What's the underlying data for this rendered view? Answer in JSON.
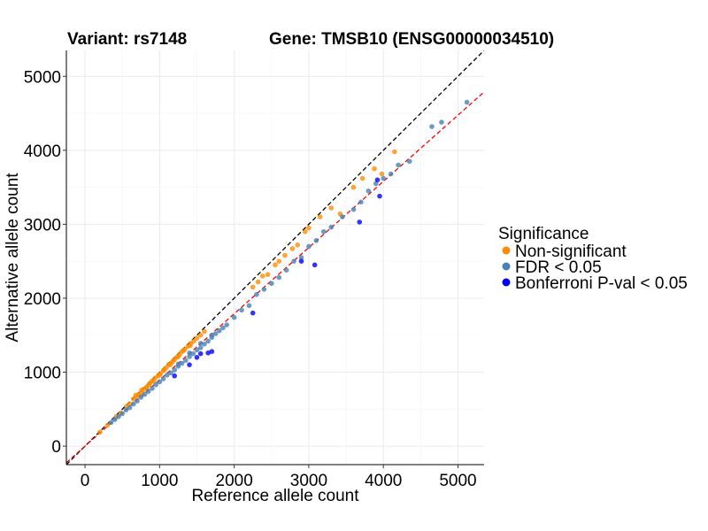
{
  "chart_data": {
    "type": "scatter",
    "title_left": "Variant: rs7148",
    "title_right": "Gene: TMSB10 (ENSG00000034510)",
    "xlabel": "Reference allele count",
    "ylabel": "Alternative allele count",
    "xlim": [
      -250,
      5350
    ],
    "ylim": [
      -250,
      5350
    ],
    "xticks": [
      0,
      1000,
      2000,
      3000,
      4000,
      5000
    ],
    "yticks": [
      0,
      1000,
      2000,
      3000,
      4000,
      5000
    ],
    "xtick_labels": [
      "0",
      "1000",
      "2000",
      "3000",
      "4000",
      "5000"
    ],
    "ytick_labels": [
      "0",
      "1000",
      "2000",
      "3000",
      "4000",
      "5000"
    ],
    "grid": true,
    "reference_lines": [
      {
        "name": "identity",
        "slope": 1.0,
        "intercept": 0,
        "color": "#000000",
        "dash": "dashed"
      },
      {
        "name": "fit",
        "slope": 0.895,
        "intercept": 0,
        "color": "#ff0000",
        "dash": "dashed"
      }
    ],
    "legend": {
      "title": "Significance",
      "placement": "right",
      "entries": [
        {
          "label": "Non-significant",
          "color": "#ff8c00"
        },
        {
          "label": "FDR < 0.05",
          "color": "#4682b4"
        },
        {
          "label": "Bonferroni P-val < 0.05",
          "color": "#0000ff"
        }
      ]
    },
    "series": [
      {
        "name": "Non-significant",
        "color": "#ff8c00",
        "points": [
          [
            200,
            190
          ],
          [
            300,
            280
          ],
          [
            420,
            400
          ],
          [
            480,
            450
          ],
          [
            560,
            540
          ],
          [
            600,
            570
          ],
          [
            650,
            640
          ],
          [
            680,
            660
          ],
          [
            720,
            690
          ],
          [
            760,
            730
          ],
          [
            790,
            770
          ],
          [
            830,
            800
          ],
          [
            870,
            850
          ],
          [
            900,
            880
          ],
          [
            940,
            920
          ],
          [
            980,
            950
          ],
          [
            1010,
            980
          ],
          [
            1050,
            1020
          ],
          [
            1090,
            1060
          ],
          [
            1120,
            1100
          ],
          [
            1160,
            1130
          ],
          [
            1200,
            1170
          ],
          [
            1230,
            1200
          ],
          [
            1270,
            1240
          ],
          [
            1300,
            1280
          ],
          [
            1340,
            1310
          ],
          [
            1380,
            1350
          ],
          [
            1420,
            1390
          ],
          [
            1460,
            1420
          ],
          [
            1500,
            1460
          ],
          [
            1550,
            1500
          ],
          [
            1600,
            1550
          ],
          [
            680,
            690
          ],
          [
            720,
            700
          ],
          [
            760,
            760
          ],
          [
            820,
            790
          ],
          [
            860,
            830
          ],
          [
            920,
            880
          ],
          [
            1000,
            960
          ],
          [
            1060,
            1030
          ],
          [
            1140,
            1100
          ],
          [
            1180,
            1150
          ],
          [
            1250,
            1210
          ],
          [
            1320,
            1290
          ],
          [
            1410,
            1360
          ],
          [
            2250,
            2150
          ],
          [
            2320,
            2220
          ],
          [
            2380,
            2300
          ],
          [
            2450,
            2320
          ],
          [
            2550,
            2450
          ],
          [
            2600,
            2500
          ],
          [
            2680,
            2580
          ],
          [
            2780,
            2670
          ],
          [
            2850,
            2720
          ],
          [
            2950,
            2900
          ],
          [
            3000,
            2950
          ],
          [
            3150,
            3100
          ],
          [
            3300,
            3220
          ],
          [
            3420,
            3140
          ],
          [
            3600,
            3500
          ],
          [
            3720,
            3620
          ],
          [
            3880,
            3750
          ],
          [
            3980,
            3680
          ],
          [
            4150,
            3980
          ]
        ]
      },
      {
        "name": "FDR < 0.05",
        "color": "#4682b4",
        "points": [
          [
            350,
            320
          ],
          [
            400,
            360
          ],
          [
            450,
            400
          ],
          [
            500,
            440
          ],
          [
            550,
            490
          ],
          [
            600,
            520
          ],
          [
            650,
            570
          ],
          [
            700,
            610
          ],
          [
            750,
            660
          ],
          [
            800,
            700
          ],
          [
            850,
            740
          ],
          [
            900,
            780
          ],
          [
            950,
            830
          ],
          [
            1000,
            870
          ],
          [
            1050,
            910
          ],
          [
            1100,
            960
          ],
          [
            1150,
            990
          ],
          [
            1200,
            1030
          ],
          [
            1250,
            1080
          ],
          [
            1300,
            1120
          ],
          [
            1350,
            1160
          ],
          [
            1400,
            1210
          ],
          [
            1450,
            1250
          ],
          [
            1500,
            1300
          ],
          [
            1550,
            1330
          ],
          [
            1600,
            1380
          ],
          [
            1650,
            1420
          ],
          [
            1700,
            1470
          ],
          [
            1750,
            1520
          ],
          [
            1800,
            1560
          ],
          [
            1850,
            1600
          ],
          [
            1900,
            1640
          ],
          [
            1250,
            1110
          ],
          [
            1400,
            1260
          ],
          [
            1550,
            1390
          ],
          [
            1700,
            1500
          ],
          [
            2000,
            1740
          ],
          [
            2100,
            1840
          ],
          [
            2200,
            1900
          ],
          [
            2300,
            2050
          ],
          [
            2400,
            2120
          ],
          [
            2500,
            2200
          ],
          [
            2600,
            2280
          ],
          [
            2700,
            2380
          ],
          [
            2800,
            2500
          ],
          [
            2900,
            2550
          ],
          [
            3000,
            2700
          ],
          [
            3100,
            2780
          ],
          [
            3200,
            2900
          ],
          [
            3300,
            2960
          ],
          [
            3450,
            3100
          ],
          [
            3600,
            3200
          ],
          [
            3700,
            3300
          ],
          [
            3800,
            3450
          ],
          [
            3900,
            3550
          ],
          [
            4000,
            3620
          ],
          [
            4100,
            3680
          ],
          [
            4200,
            3800
          ],
          [
            4350,
            3850
          ],
          [
            4650,
            4320
          ],
          [
            4780,
            4380
          ],
          [
            5120,
            4650
          ]
        ]
      },
      {
        "name": "Bonferroni P-val < 0.05",
        "color": "#0000ff",
        "points": [
          [
            1200,
            950
          ],
          [
            1400,
            1100
          ],
          [
            1500,
            1200
          ],
          [
            1550,
            1250
          ],
          [
            1650,
            1260
          ],
          [
            1700,
            1280
          ],
          [
            2250,
            1800
          ],
          [
            2900,
            2500
          ],
          [
            3080,
            2450
          ],
          [
            3680,
            3030
          ],
          [
            3920,
            3600
          ],
          [
            3950,
            3380
          ]
        ]
      }
    ]
  }
}
